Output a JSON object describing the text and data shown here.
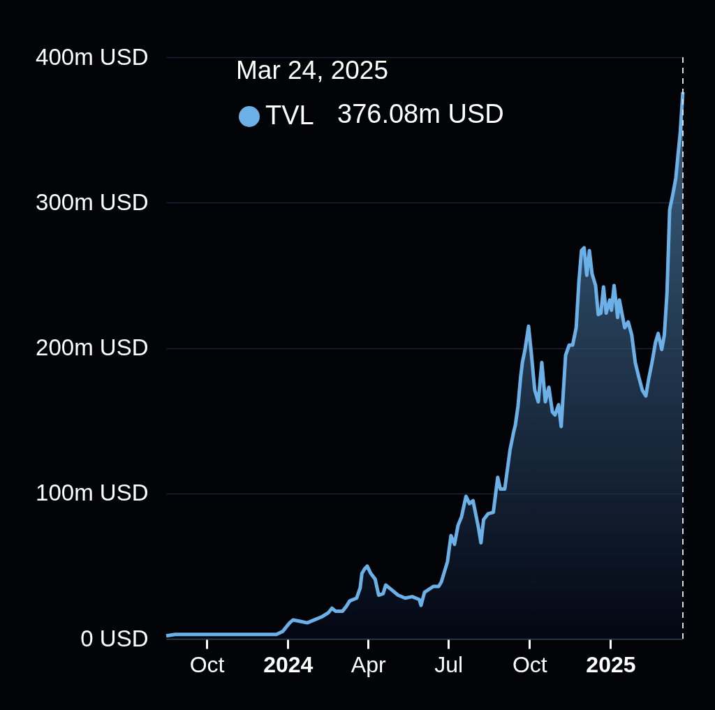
{
  "chart_data": {
    "type": "area",
    "annotations": [
      "Mar 24, 2025",
      "376.08m USD"
    ],
    "x": [
      "2023-08-16",
      "2023-08-26",
      "2023-12-19",
      "2023-12-26",
      "2024-01-03",
      "2024-01-07",
      "2024-01-15",
      "2024-01-23",
      "2024-01-31",
      "2024-02-08",
      "2024-02-16",
      "2024-02-20",
      "2024-02-24",
      "2024-03-03",
      "2024-03-07",
      "2024-03-11",
      "2024-03-15",
      "2024-03-19",
      "2024-03-23",
      "2024-03-25",
      "2024-03-28",
      "2024-03-31",
      "2024-04-04",
      "2024-04-09",
      "2024-04-13",
      "2024-04-18",
      "2024-04-21",
      "2024-04-27",
      "2024-05-05",
      "2024-05-13",
      "2024-05-21",
      "2024-05-29",
      "2024-05-31",
      "2024-06-04",
      "2024-06-14",
      "2024-06-20",
      "2024-06-23",
      "2024-06-30",
      "2024-07-04",
      "2024-07-08",
      "2024-07-12",
      "2024-07-16",
      "2024-07-21",
      "2024-07-25",
      "2024-07-29",
      "2024-08-04",
      "2024-08-07",
      "2024-08-10",
      "2024-08-15",
      "2024-08-21",
      "2024-08-26",
      "2024-08-29",
      "2024-09-03",
      "2024-09-09",
      "2024-09-13",
      "2024-09-15",
      "2024-09-18",
      "2024-09-21",
      "2024-09-23",
      "2024-09-26",
      "2024-09-30",
      "2024-10-03",
      "2024-10-07",
      "2024-10-11",
      "2024-10-15",
      "2024-10-19",
      "2024-10-23",
      "2024-10-27",
      "2024-10-30",
      "2024-11-03",
      "2024-11-06",
      "2024-11-11",
      "2024-11-15",
      "2024-11-19",
      "2024-11-23",
      "2024-11-26",
      "2024-11-29",
      "2024-12-02",
      "2024-12-05",
      "2024-12-08",
      "2024-12-11",
      "2024-12-15",
      "2024-12-18",
      "2024-12-21",
      "2024-12-24",
      "2024-12-27",
      "2024-12-31",
      "2025-01-02",
      "2025-01-05",
      "2025-01-09",
      "2025-01-11",
      "2025-01-17",
      "2025-01-21",
      "2025-01-25",
      "2025-01-29",
      "2025-02-02",
      "2025-02-06",
      "2025-02-10",
      "2025-02-13",
      "2025-02-17",
      "2025-02-21",
      "2025-02-24",
      "2025-02-28",
      "2025-03-03",
      "2025-03-06",
      "2025-03-09",
      "2025-03-13",
      "2025-03-16",
      "2025-03-19",
      "2025-03-21",
      "2025-03-24"
    ],
    "series": [
      {
        "name": "TVL",
        "color": "#6cb0e8",
        "values": [
          2,
          3,
          3,
          5,
          11,
          13,
          12,
          11,
          13,
          15,
          18,
          21,
          19,
          19,
          22,
          26,
          27,
          28,
          35,
          45,
          48,
          50,
          45,
          41,
          30,
          31,
          37,
          34,
          30,
          28,
          29,
          27,
          23,
          32,
          36,
          36,
          39,
          53,
          71,
          65,
          78,
          84,
          98,
          93,
          95,
          77,
          66,
          82,
          86,
          87,
          111,
          103,
          103,
          130,
          142,
          147,
          160,
          180,
          190,
          199,
          215,
          197,
          171,
          163,
          190,
          163,
          173,
          156,
          154,
          161,
          146,
          195,
          202,
          202,
          214,
          245,
          267,
          269,
          250,
          267,
          251,
          243,
          223,
          224,
          242,
          224,
          233,
          226,
          243,
          221,
          233,
          214,
          218,
          209,
          190,
          180,
          171,
          167,
          178,
          190,
          204,
          210,
          199,
          209,
          238,
          295,
          307,
          317,
          336,
          348,
          376.08
        ]
      }
    ],
    "xlim": [
      "2023-08-16",
      "2025-03-24"
    ],
    "xticks": [
      {
        "value": "2023-10-01",
        "label": "Oct"
      },
      {
        "value": "2024-01-01",
        "label": "2024"
      },
      {
        "value": "2024-04-01",
        "label": "Apr"
      },
      {
        "value": "2024-07-01",
        "label": "Jul"
      },
      {
        "value": "2024-10-01",
        "label": "Oct"
      },
      {
        "value": "2025-01-01",
        "label": "2025"
      }
    ],
    "ylim": [
      0,
      400
    ],
    "yticks": [
      {
        "value": 0,
        "label": "0 USD"
      },
      {
        "value": 100,
        "label": "100m USD"
      },
      {
        "value": 200,
        "label": "200m USD"
      },
      {
        "value": 300,
        "label": "300m USD"
      },
      {
        "value": 400,
        "label": "400m USD"
      }
    ],
    "grid": "y",
    "legend": "top left",
    "marker": "none",
    "line_style": "solid",
    "ref_lines": [
      {
        "axis": "x",
        "value": "2025-03-24",
        "color": "#dddddd",
        "line_style": "dashed"
      }
    ]
  }
}
